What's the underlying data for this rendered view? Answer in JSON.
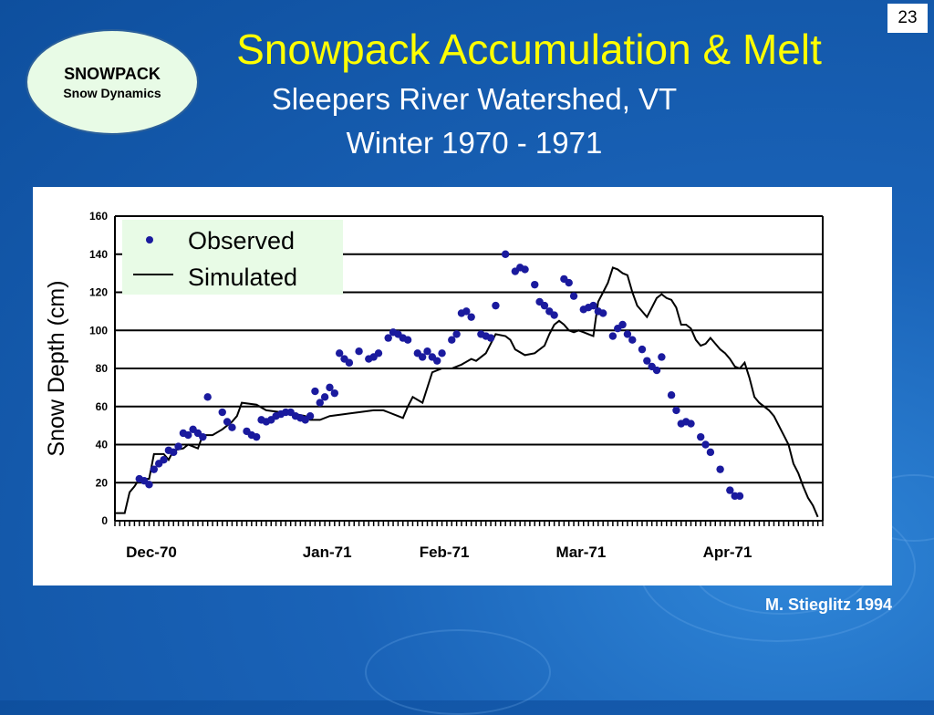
{
  "page_number": "23",
  "badge": {
    "line1": "SNOWPACK",
    "line2": "Snow Dynamics"
  },
  "credit": "M. Stieglitz 1994",
  "colors": {
    "title": "#ffff00",
    "observed": "#1a1a9e",
    "simulated": "#000000",
    "legend_bg": "#e8fbe6"
  },
  "chart_data": {
    "type": "line",
    "title": "Snowpack Accumulation & Melt",
    "subtitle": [
      "Sleepers River Watershed, VT",
      "Winter 1970 - 1971"
    ],
    "ylabel": "Snow Depth (cm)",
    "xlabel": "",
    "ylim": [
      0,
      160
    ],
    "yticks": [
      "0",
      "20",
      "40",
      "60",
      "80",
      "100",
      "120",
      "140",
      "160"
    ],
    "xlim": [
      0,
      145
    ],
    "xticks": [
      {
        "label": "Dec-70",
        "x": 0
      },
      {
        "label": "Jan-71",
        "x": 36
      },
      {
        "label": "Feb-71",
        "x": 60
      },
      {
        "label": "Mar-71",
        "x": 88
      },
      {
        "label": "Apr-71",
        "x": 118
      }
    ],
    "grid": true,
    "legend": {
      "placement": "top-left",
      "observed": "Observed",
      "simulated": "Simulated"
    },
    "series": [
      {
        "name": "Simulated",
        "kind": "line",
        "points": [
          [
            0,
            4
          ],
          [
            2,
            4
          ],
          [
            3,
            15
          ],
          [
            4,
            18
          ],
          [
            5,
            22
          ],
          [
            7,
            22
          ],
          [
            8,
            35
          ],
          [
            10,
            35
          ],
          [
            11,
            32
          ],
          [
            12,
            37
          ],
          [
            14,
            38
          ],
          [
            15,
            40
          ],
          [
            17,
            38
          ],
          [
            18,
            45
          ],
          [
            20,
            45
          ],
          [
            22,
            48
          ],
          [
            23,
            50
          ],
          [
            24,
            52
          ],
          [
            25,
            55
          ],
          [
            26,
            62
          ],
          [
            29,
            61
          ],
          [
            31,
            58
          ],
          [
            34,
            57
          ],
          [
            37,
            56
          ],
          [
            39,
            55
          ],
          [
            40,
            53
          ],
          [
            42,
            53
          ],
          [
            44,
            55
          ],
          [
            47,
            56
          ],
          [
            50,
            57
          ],
          [
            53,
            58
          ],
          [
            55,
            58
          ],
          [
            56,
            57
          ],
          [
            58,
            55
          ],
          [
            59,
            54
          ],
          [
            60,
            60
          ],
          [
            61,
            65
          ],
          [
            63,
            62
          ],
          [
            65,
            78
          ],
          [
            67,
            80
          ],
          [
            69,
            80
          ],
          [
            71,
            82
          ],
          [
            73,
            85
          ],
          [
            74,
            84
          ],
          [
            76,
            88
          ],
          [
            78,
            98
          ],
          [
            80,
            97
          ],
          [
            81,
            95
          ],
          [
            82,
            90
          ],
          [
            84,
            87
          ],
          [
            86,
            88
          ],
          [
            88,
            92
          ],
          [
            89,
            98
          ],
          [
            90,
            103
          ],
          [
            91,
            105
          ],
          [
            92,
            103
          ],
          [
            93,
            100
          ],
          [
            94,
            99
          ],
          [
            95,
            100
          ],
          [
            96,
            99
          ],
          [
            97,
            98
          ],
          [
            98,
            97
          ],
          [
            99,
            115
          ],
          [
            100,
            120
          ],
          [
            101,
            125
          ],
          [
            102,
            133
          ],
          [
            103,
            132
          ],
          [
            104,
            130
          ],
          [
            105,
            129
          ],
          [
            106,
            120
          ],
          [
            107,
            113
          ],
          [
            108,
            110
          ],
          [
            109,
            107
          ],
          [
            110,
            112
          ],
          [
            111,
            117
          ],
          [
            112,
            119
          ],
          [
            113,
            117
          ],
          [
            114,
            116
          ],
          [
            115,
            112
          ],
          [
            116,
            103
          ],
          [
            117,
            103
          ],
          [
            118,
            101
          ],
          [
            119,
            95
          ],
          [
            120,
            92
          ],
          [
            121,
            93
          ],
          [
            122,
            96
          ],
          [
            123,
            93
          ],
          [
            124,
            90
          ],
          [
            125,
            88
          ],
          [
            126,
            85
          ],
          [
            127,
            81
          ],
          [
            128,
            80
          ],
          [
            129,
            83
          ],
          [
            130,
            75
          ],
          [
            131,
            65
          ],
          [
            132,
            62
          ],
          [
            133,
            60
          ],
          [
            134,
            58
          ],
          [
            135,
            55
          ],
          [
            136,
            50
          ],
          [
            137,
            45
          ],
          [
            138,
            40
          ],
          [
            139,
            30
          ],
          [
            140,
            25
          ],
          [
            141,
            18
          ],
          [
            142,
            12
          ],
          [
            143,
            8
          ],
          [
            144,
            2
          ]
        ]
      },
      {
        "name": "Observed",
        "kind": "scatter",
        "points": [
          [
            5,
            22
          ],
          [
            6,
            21
          ],
          [
            7,
            19
          ],
          [
            8,
            27
          ],
          [
            9,
            30
          ],
          [
            10,
            32
          ],
          [
            11,
            37
          ],
          [
            12,
            36
          ],
          [
            13,
            39
          ],
          [
            14,
            46
          ],
          [
            15,
            45
          ],
          [
            16,
            48
          ],
          [
            17,
            46
          ],
          [
            18,
            44
          ],
          [
            19,
            65
          ],
          [
            22,
            57
          ],
          [
            23,
            52
          ],
          [
            24,
            49
          ],
          [
            27,
            47
          ],
          [
            28,
            45
          ],
          [
            29,
            44
          ],
          [
            30,
            53
          ],
          [
            31,
            52
          ],
          [
            32,
            53
          ],
          [
            33,
            55
          ],
          [
            34,
            56
          ],
          [
            35,
            57
          ],
          [
            36,
            57
          ],
          [
            37,
            55
          ],
          [
            38,
            54
          ],
          [
            39,
            53
          ],
          [
            40,
            55
          ],
          [
            41,
            68
          ],
          [
            42,
            62
          ],
          [
            43,
            65
          ],
          [
            44,
            70
          ],
          [
            45,
            67
          ],
          [
            46,
            88
          ],
          [
            47,
            85
          ],
          [
            48,
            83
          ],
          [
            50,
            89
          ],
          [
            52,
            85
          ],
          [
            53,
            86
          ],
          [
            54,
            88
          ],
          [
            56,
            96
          ],
          [
            57,
            99
          ],
          [
            58,
            98
          ],
          [
            59,
            96
          ],
          [
            60,
            95
          ],
          [
            62,
            88
          ],
          [
            63,
            86
          ],
          [
            64,
            89
          ],
          [
            65,
            86
          ],
          [
            66,
            84
          ],
          [
            67,
            88
          ],
          [
            69,
            95
          ],
          [
            70,
            98
          ],
          [
            71,
            109
          ],
          [
            72,
            110
          ],
          [
            73,
            107
          ],
          [
            75,
            98
          ],
          [
            76,
            97
          ],
          [
            77,
            96
          ],
          [
            78,
            113
          ],
          [
            80,
            140
          ],
          [
            82,
            131
          ],
          [
            83,
            133
          ],
          [
            84,
            132
          ],
          [
            86,
            124
          ],
          [
            87,
            115
          ],
          [
            88,
            113
          ],
          [
            89,
            110
          ],
          [
            90,
            108
          ],
          [
            92,
            127
          ],
          [
            93,
            125
          ],
          [
            94,
            118
          ],
          [
            96,
            111
          ],
          [
            97,
            112
          ],
          [
            98,
            113
          ],
          [
            99,
            110
          ],
          [
            100,
            109
          ],
          [
            102,
            97
          ],
          [
            103,
            101
          ],
          [
            104,
            103
          ],
          [
            105,
            98
          ],
          [
            106,
            95
          ],
          [
            108,
            90
          ],
          [
            109,
            84
          ],
          [
            110,
            81
          ],
          [
            111,
            79
          ],
          [
            112,
            86
          ],
          [
            114,
            66
          ],
          [
            115,
            58
          ],
          [
            116,
            51
          ],
          [
            117,
            52
          ],
          [
            118,
            51
          ],
          [
            120,
            44
          ],
          [
            121,
            40
          ],
          [
            122,
            36
          ],
          [
            124,
            27
          ],
          [
            126,
            16
          ],
          [
            127,
            13
          ],
          [
            128,
            13
          ]
        ]
      }
    ]
  }
}
